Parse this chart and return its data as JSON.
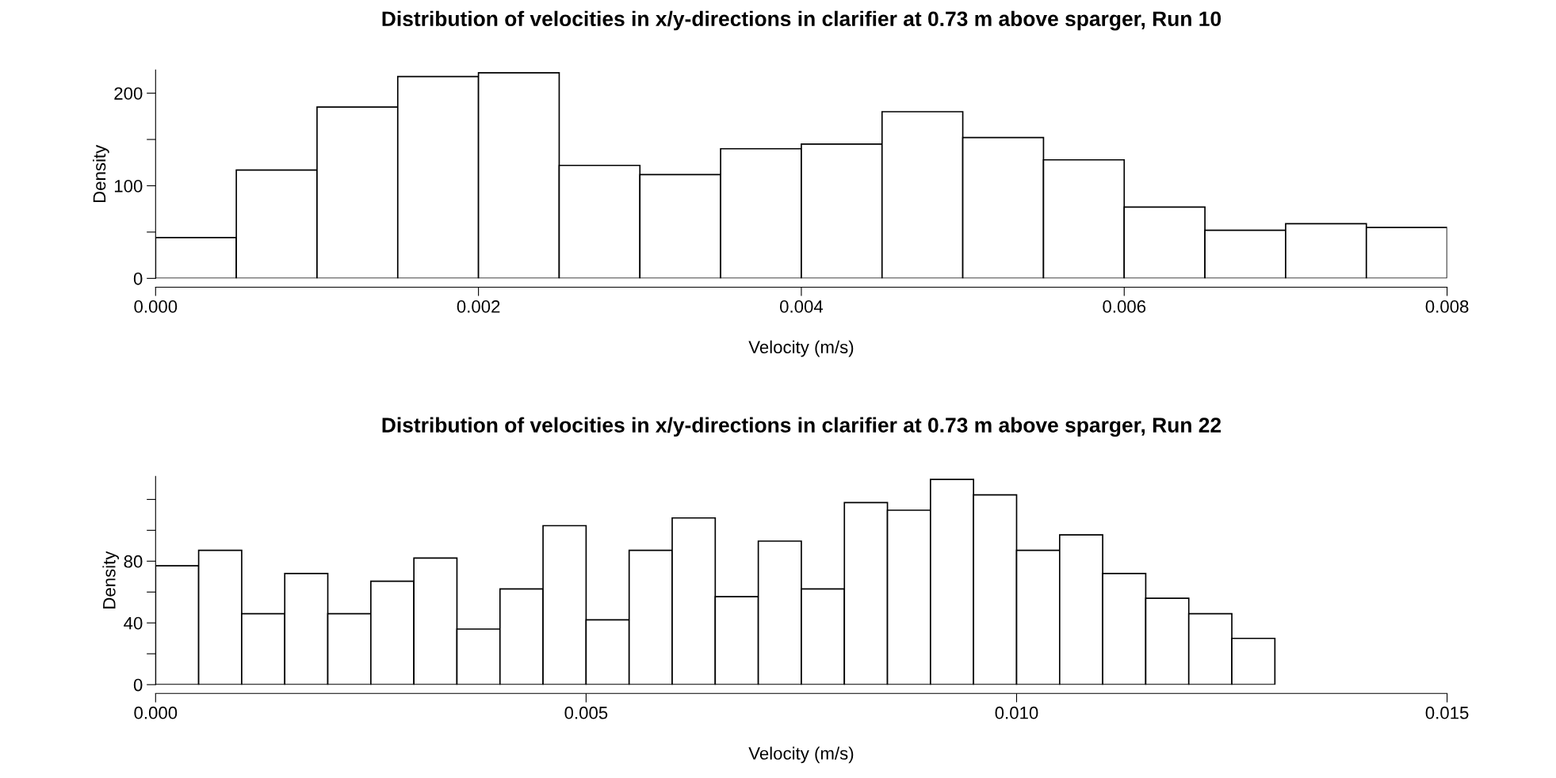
{
  "chart_data": [
    {
      "type": "histogram",
      "title": "Distribution of velocities in x/y-directions in clarifier at 0.73 m above sparger, Run 10",
      "xlabel": "Velocity (m/s)",
      "ylabel": "Density",
      "color": "#ffffff",
      "bins": [
        0,
        0.0005,
        0.001,
        0.0015,
        0.002,
        0.0025,
        0.003,
        0.0035,
        0.004,
        0.0045,
        0.005,
        0.0055,
        0.006,
        0.0065,
        0.007,
        0.0075,
        0.008
      ],
      "values": [
        44,
        117,
        185,
        218,
        222,
        122,
        112,
        140,
        145,
        180,
        152,
        128,
        77,
        52,
        59,
        55
      ],
      "xlim": [
        0,
        0.008
      ],
      "xticks": [
        {
          "value": 0,
          "label": "0.000"
        },
        {
          "value": 0.002,
          "label": "0.002"
        },
        {
          "value": 0.004,
          "label": "0.004"
        },
        {
          "value": 0.006,
          "label": "0.006"
        },
        {
          "value": 0.008,
          "label": "0.008"
        }
      ],
      "ylim": [
        0,
        225
      ],
      "yticks": [
        0,
        {
          "value": 50,
          "label": null
        },
        100,
        {
          "value": 150,
          "label": null
        },
        200
      ],
      "grid": false
    },
    {
      "type": "histogram",
      "title": "Distribution of velocities in x/y-directions in clarifier at 0.73 m above sparger, Run 22",
      "xlabel": "Velocity (m/s)",
      "ylabel": "Density",
      "color": "#ffffff",
      "bins": [
        0,
        0.0005,
        0.001,
        0.0015,
        0.002,
        0.0025,
        0.003,
        0.0035,
        0.004,
        0.0045,
        0.005,
        0.0055,
        0.006,
        0.0065,
        0.007,
        0.0075,
        0.008,
        0.0085,
        0.009,
        0.0095,
        0.01,
        0.0105,
        0.011,
        0.0115,
        0.012,
        0.0125,
        0.013
      ],
      "values": [
        77,
        87,
        46,
        72,
        46,
        67,
        82,
        36,
        62,
        103,
        42,
        87,
        108,
        57,
        93,
        62,
        118,
        113,
        133,
        123,
        87,
        97,
        72,
        56,
        46,
        30
      ],
      "xlim": [
        0,
        0.015
      ],
      "xticks": [
        {
          "value": 0,
          "label": "0.000"
        },
        {
          "value": 0.005,
          "label": "0.005"
        },
        {
          "value": 0.01,
          "label": "0.010"
        },
        {
          "value": 0.015,
          "label": "0.015"
        }
      ],
      "ylim": [
        0,
        135
      ],
      "yticks": [
        0,
        {
          "value": 20,
          "label": null
        },
        40,
        {
          "value": 60,
          "label": null
        },
        80,
        {
          "value": 100,
          "label": null
        },
        {
          "value": 120,
          "label": null
        }
      ],
      "grid": false
    }
  ]
}
